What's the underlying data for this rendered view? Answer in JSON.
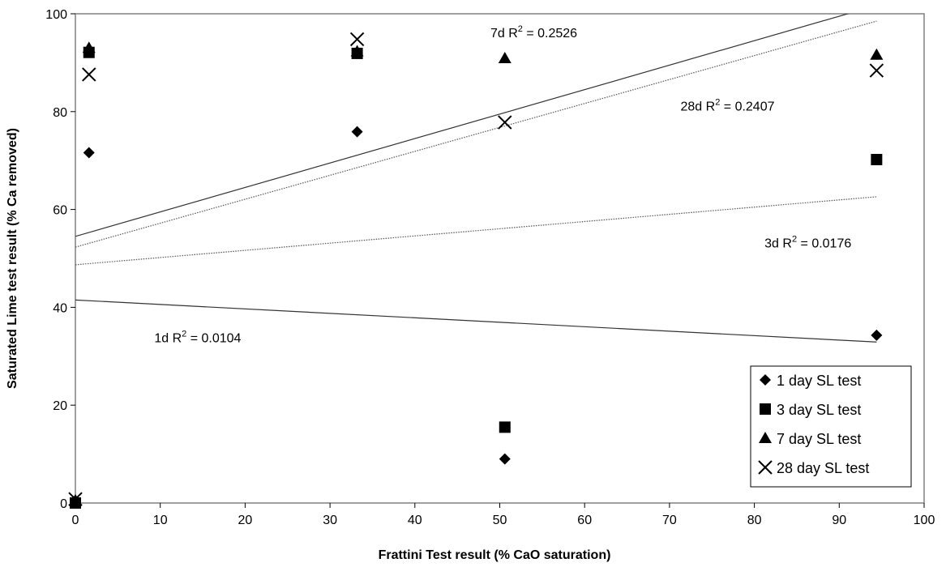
{
  "chart_data": {
    "type": "scatter",
    "xlabel": "Frattini Test result (% CaO saturation)",
    "ylabel": "Saturated Lime test result (% Ca removed)",
    "xlim": [
      0,
      100
    ],
    "ylim": [
      0,
      100
    ],
    "xticks": [
      "0",
      "10",
      "20",
      "30",
      "40",
      "50",
      "60",
      "70",
      "80",
      "90",
      "100"
    ],
    "yticks": [
      "0",
      "20",
      "40",
      "60",
      "80",
      "100"
    ],
    "grid": false,
    "legend_position": "bottom-right",
    "series": [
      {
        "name": "1 day SL test",
        "marker": "diamond",
        "points": [
          [
            0,
            0
          ],
          [
            0,
            0.5
          ],
          [
            1.6,
            71.6
          ],
          [
            33.2,
            75.9
          ],
          [
            50.6,
            9.0
          ],
          [
            94.4,
            34.3
          ]
        ]
      },
      {
        "name": "3 day SL test",
        "marker": "square",
        "points": [
          [
            0,
            0
          ],
          [
            1.6,
            92.1
          ],
          [
            33.2,
            91.9
          ],
          [
            50.6,
            15.5
          ],
          [
            94.4,
            70.2
          ]
        ]
      },
      {
        "name": "7 day SL test",
        "marker": "triangle",
        "points": [
          [
            0,
            0.5
          ],
          [
            1.6,
            93.0
          ],
          [
            33.2,
            92.3
          ],
          [
            50.6,
            90.9
          ],
          [
            94.4,
            91.6
          ]
        ]
      },
      {
        "name": "28 day SL test",
        "marker": "x",
        "points": [
          [
            0,
            0.8
          ],
          [
            1.6,
            87.6
          ],
          [
            33.2,
            94.8
          ],
          [
            50.6,
            77.8
          ],
          [
            94.4,
            88.4
          ]
        ]
      }
    ],
    "trendlines": [
      {
        "series": "1 day SL test",
        "x": [
          0,
          94.4
        ],
        "y": [
          41.5,
          32.9
        ],
        "style": "solid"
      },
      {
        "series": "3 day SL test",
        "x": [
          0,
          94.4
        ],
        "y": [
          48.7,
          62.6
        ],
        "style": "dotted"
      },
      {
        "series": "7 day SL test",
        "x": [
          0,
          100
        ],
        "y": [
          54.5,
          104.5
        ],
        "style": "solid"
      },
      {
        "series": "28 day SL test",
        "x": [
          0,
          94.4
        ],
        "y": [
          52.3,
          98.5
        ],
        "style": "dotted"
      }
    ],
    "annotations": [
      {
        "prefix": "7d R",
        "suffix": " = 0.2526",
        "x": 48.9,
        "y": 95.2
      },
      {
        "prefix": "28d R",
        "suffix": " = 0.2407",
        "x": 71.3,
        "y": 80.2
      },
      {
        "prefix": "3d R",
        "suffix": " = 0.0176",
        "x": 81.2,
        "y": 52.2
      },
      {
        "prefix": "1d R",
        "suffix": " = 0.0104",
        "x": 9.3,
        "y": 32.9
      }
    ]
  }
}
